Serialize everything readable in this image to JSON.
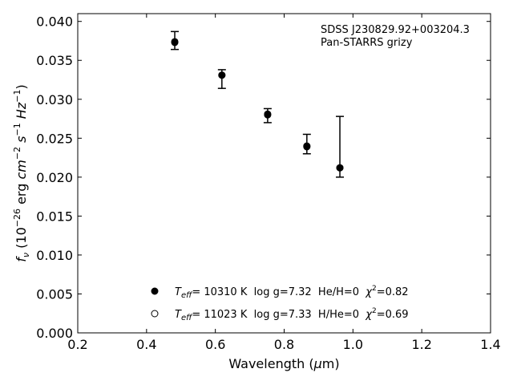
{
  "chart_data": {
    "type": "scatter",
    "annotation_lines": [
      "SDSS J230829.92+003204.3",
      "Pan-STARRS grizy"
    ],
    "xlabel": {
      "prefix": "Wavelength (",
      "mu": "μ",
      "suffix": "m)"
    },
    "ylabel": {
      "f": "f",
      "f_sub": "ν",
      "open": " (10",
      "exp1": "−26",
      "unit_a": " erg ",
      "cm": "cm",
      "exp2": "−2",
      "s": " s",
      "exp3": "−1",
      "hz": " Hz",
      "exp4": "−1",
      "close": ")"
    },
    "xlim": [
      0.2,
      1.4
    ],
    "ylim": [
      0.0,
      0.041
    ],
    "x_ticks": [
      "0.2",
      "0.4",
      "0.6",
      "0.8",
      "1.0",
      "1.2",
      "1.4"
    ],
    "y_ticks": [
      "0.000",
      "0.005",
      "0.010",
      "0.015",
      "0.020",
      "0.025",
      "0.030",
      "0.035",
      "0.040"
    ],
    "x_tick_values": [
      0.2,
      0.4,
      0.6,
      0.8,
      1.0,
      1.2,
      1.4
    ],
    "y_tick_values": [
      0.0,
      0.005,
      0.01,
      0.015,
      0.02,
      0.025,
      0.03,
      0.035,
      0.04
    ],
    "series": [
      {
        "marker": "filled-circle",
        "x": [
          0.482,
          0.619,
          0.752,
          0.866,
          0.962
        ],
        "y": [
          0.0373,
          0.0331,
          0.028,
          0.0239,
          0.0212
        ],
        "legend": {
          "T": "T",
          "T_sub": "eff",
          "rest": "= 10310 K  log g=7.32  He/H=0  ",
          "chi": "χ",
          "chi_sup": "2",
          "chi_val": "=0.82"
        }
      },
      {
        "marker": "open-circle",
        "x": [
          0.482,
          0.619,
          0.752,
          0.866,
          0.962
        ],
        "y": [
          0.0374,
          0.0331,
          0.0281,
          0.024,
          0.0212
        ],
        "legend": {
          "T": "T",
          "T_sub": "eff",
          "rest": "= 11023 K  log g=7.33  H/He=0  ",
          "chi": "χ",
          "chi_sup": "2",
          "chi_val": "=0.69"
        }
      }
    ],
    "observed": {
      "x": [
        0.482,
        0.619,
        0.752,
        0.866,
        0.962
      ],
      "y": [
        0.0373,
        0.0331,
        0.028,
        0.0239,
        0.0212
      ],
      "yerr_low": [
        0.0364,
        0.0314,
        0.027,
        0.023,
        0.02
      ],
      "yerr_high": [
        0.0387,
        0.0338,
        0.0288,
        0.0255,
        0.0278
      ]
    },
    "grid": false,
    "legend_position": "lower-center"
  }
}
